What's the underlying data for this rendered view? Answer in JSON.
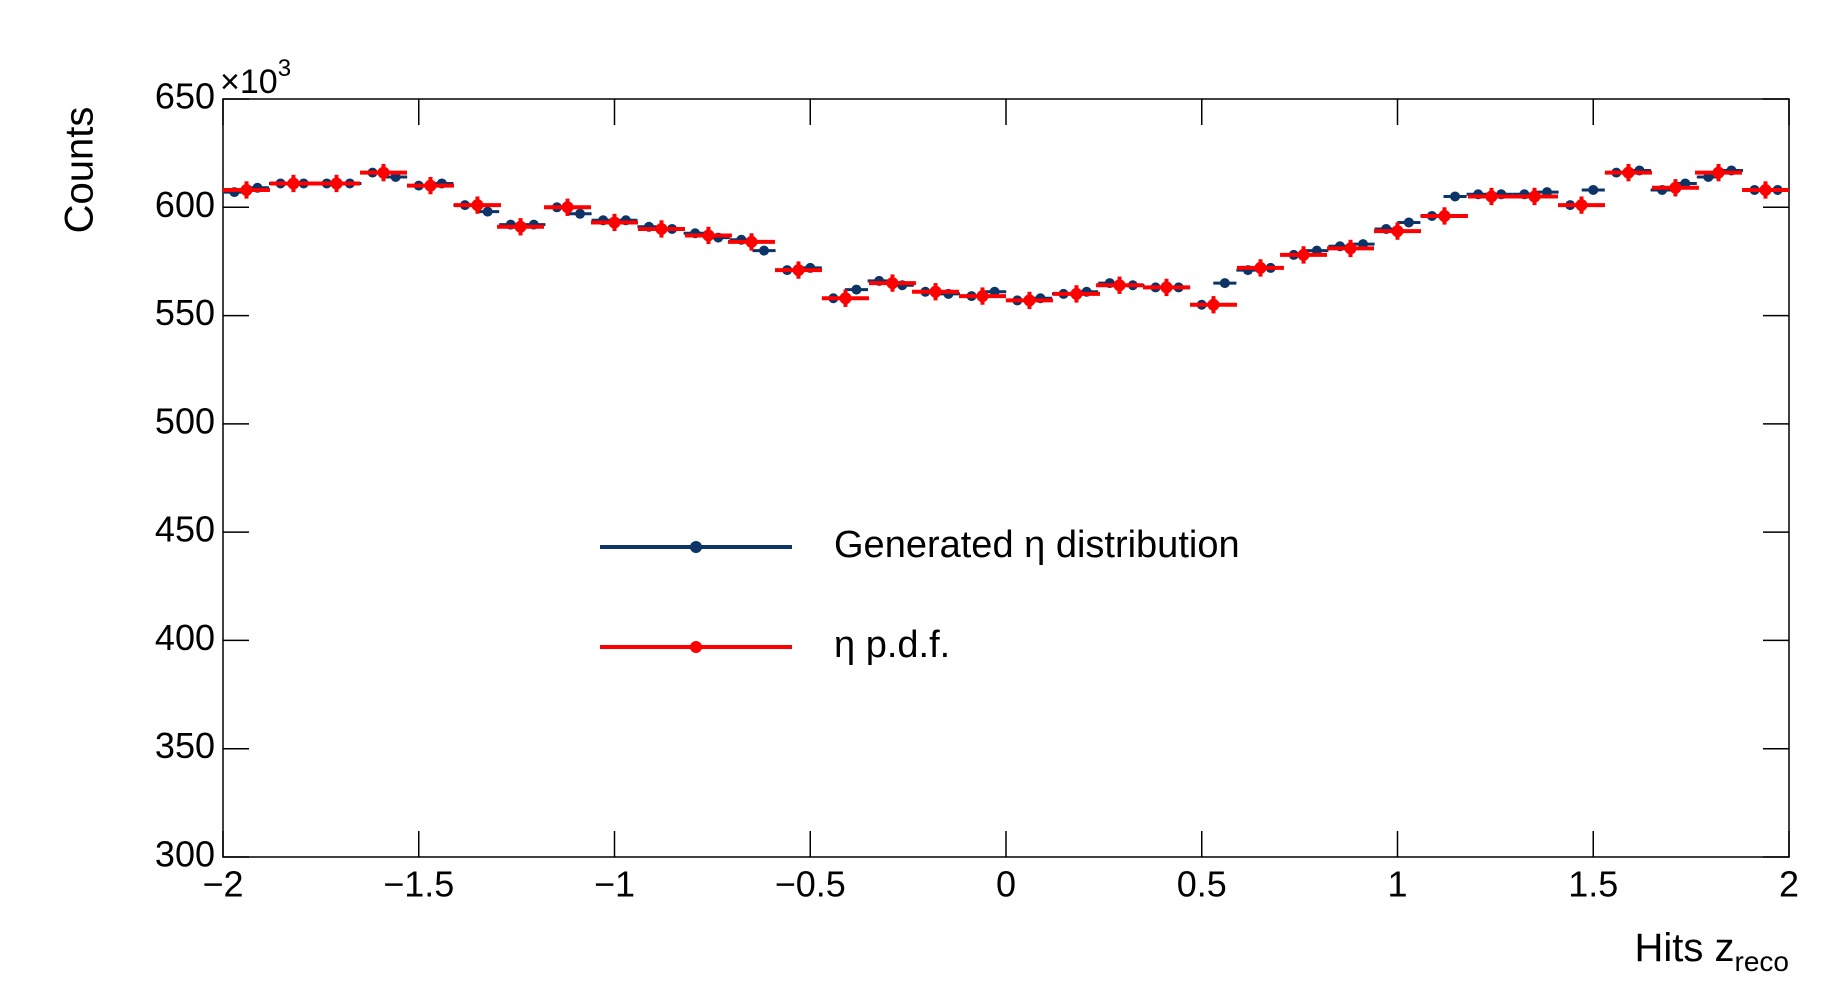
{
  "chart_data": {
    "type": "errorbar",
    "y_label": "Counts",
    "x_label": "Hits z",
    "x_label_sub": "reco",
    "y_multiplier": "×10",
    "y_multiplier_exp": "3",
    "xlim": [
      -2,
      2
    ],
    "ylim": [
      300,
      650
    ],
    "xticks": [
      {
        "value": -2,
        "label": "−2"
      },
      {
        "value": -1.5,
        "label": "−1.5"
      },
      {
        "value": -1,
        "label": "−1"
      },
      {
        "value": -0.5,
        "label": "−0.5"
      },
      0,
      0.5,
      1,
      1.5,
      2
    ],
    "yticks": [
      300,
      350,
      400,
      450,
      500,
      550,
      600,
      650
    ],
    "series": [
      {
        "name": "Generated η distribution",
        "color": "#0d3466",
        "x": [
          -1.971,
          -1.912,
          -1.853,
          -1.794,
          -1.735,
          -1.676,
          -1.618,
          -1.559,
          -1.5,
          -1.441,
          -1.382,
          -1.324,
          -1.265,
          -1.206,
          -1.147,
          -1.088,
          -1.029,
          -0.971,
          -0.912,
          -0.853,
          -0.794,
          -0.735,
          -0.676,
          -0.618,
          -0.559,
          -0.5,
          -0.441,
          -0.382,
          -0.324,
          -0.265,
          -0.206,
          -0.147,
          -0.088,
          -0.029,
          0.029,
          0.088,
          0.147,
          0.206,
          0.265,
          0.324,
          0.382,
          0.441,
          0.5,
          0.559,
          0.618,
          0.676,
          0.735,
          0.794,
          0.853,
          0.912,
          0.971,
          1.029,
          1.088,
          1.147,
          1.206,
          1.265,
          1.324,
          1.382,
          1.441,
          1.5,
          1.559,
          1.618,
          1.676,
          1.735,
          1.794,
          1.853,
          1.912,
          1.971
        ],
        "values": [
          607,
          609,
          611,
          611,
          611,
          611,
          616,
          614,
          610,
          611,
          601,
          598,
          592,
          592,
          600,
          597,
          594,
          594,
          591,
          590,
          588,
          586,
          585,
          580,
          571,
          572,
          558,
          562,
          566,
          564,
          561,
          560,
          559,
          561,
          557,
          558,
          560,
          561,
          565,
          564,
          563,
          563,
          555,
          565,
          571,
          572,
          578,
          580,
          582,
          583,
          590,
          593,
          596,
          605,
          606,
          606,
          606,
          607,
          601,
          608,
          616,
          617,
          608,
          611,
          614,
          617,
          608,
          608
        ]
      },
      {
        "name": "η p.d.f.",
        "color": "#ff0000",
        "x": [
          -1.94,
          -1.82,
          -1.71,
          -1.59,
          -1.47,
          -1.35,
          -1.24,
          -1.12,
          -1.0,
          -0.88,
          -0.76,
          -0.65,
          -0.53,
          -0.41,
          -0.29,
          -0.18,
          -0.06,
          0.06,
          0.18,
          0.29,
          0.41,
          0.53,
          0.65,
          0.76,
          0.88,
          1.0,
          1.12,
          1.24,
          1.35,
          1.47,
          1.59,
          1.71,
          1.82,
          1.94
        ],
        "values": [
          608,
          611,
          611,
          616,
          610,
          601,
          591,
          600,
          593,
          590,
          587,
          584,
          571,
          558,
          565,
          561,
          559,
          557,
          560,
          564,
          563,
          555,
          572,
          578,
          581,
          589,
          596,
          605,
          605,
          601,
          616,
          609,
          616,
          608
        ],
        "errors": [
          4,
          4,
          4,
          4,
          4,
          4,
          4,
          4,
          4,
          4,
          4,
          4,
          4,
          4,
          4,
          4,
          4,
          4,
          4,
          4,
          4,
          4,
          4,
          4,
          4,
          4,
          4,
          4,
          4,
          4,
          4,
          4,
          4,
          4
        ]
      }
    ]
  }
}
